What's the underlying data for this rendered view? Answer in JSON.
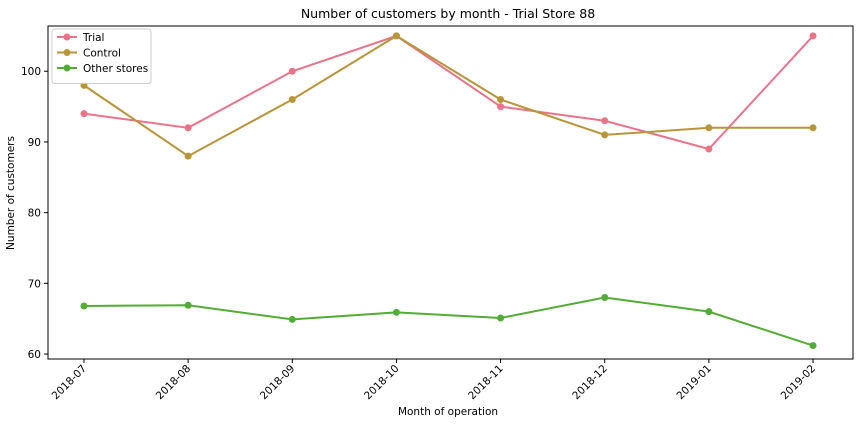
{
  "chart_data": {
    "type": "line",
    "title": "Number of customers by month - Trial Store 88",
    "xlabel": "Month of operation",
    "ylabel": "Number of customers",
    "categories": [
      "2018-07",
      "2018-08",
      "2018-09",
      "2018-10",
      "2018-11",
      "2018-12",
      "2019-01",
      "2019-02"
    ],
    "ylim": [
      59.3,
      106.4
    ],
    "yticks": [
      60,
      70,
      80,
      90,
      100
    ],
    "grid": false,
    "legend_position": "top-left",
    "series": [
      {
        "name": "Trial",
        "color": "#ea7389",
        "values": [
          94,
          92,
          100,
          105,
          95,
          93,
          89,
          105
        ]
      },
      {
        "name": "Control",
        "color": "#b9953a",
        "values": [
          98,
          88,
          96,
          105,
          96,
          91,
          92,
          92
        ]
      },
      {
        "name": "Other stores",
        "color": "#52ad36",
        "values": [
          66.8,
          66.9,
          64.9,
          65.9,
          65.1,
          68.0,
          66.0,
          61.2
        ]
      }
    ]
  }
}
